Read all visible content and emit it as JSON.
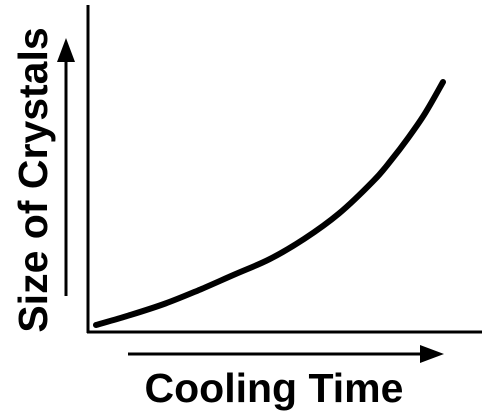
{
  "chart_data": {
    "type": "line",
    "title": "",
    "xlabel": "Cooling Time",
    "ylabel": "Size of Crystals",
    "xlim": [
      0,
      1
    ],
    "ylim": [
      0,
      1
    ],
    "grid": false,
    "axis_ticks": false,
    "series": [
      {
        "values_x": [
          0.0,
          0.1,
          0.2,
          0.3,
          0.4,
          0.5,
          0.6,
          0.7,
          0.8,
          0.85,
          0.9,
          0.95,
          1.0
        ],
        "values_y": [
          0.0,
          0.04,
          0.085,
          0.14,
          0.2,
          0.26,
          0.34,
          0.44,
          0.57,
          0.65,
          0.74,
          0.84,
          0.96
        ]
      }
    ]
  }
}
